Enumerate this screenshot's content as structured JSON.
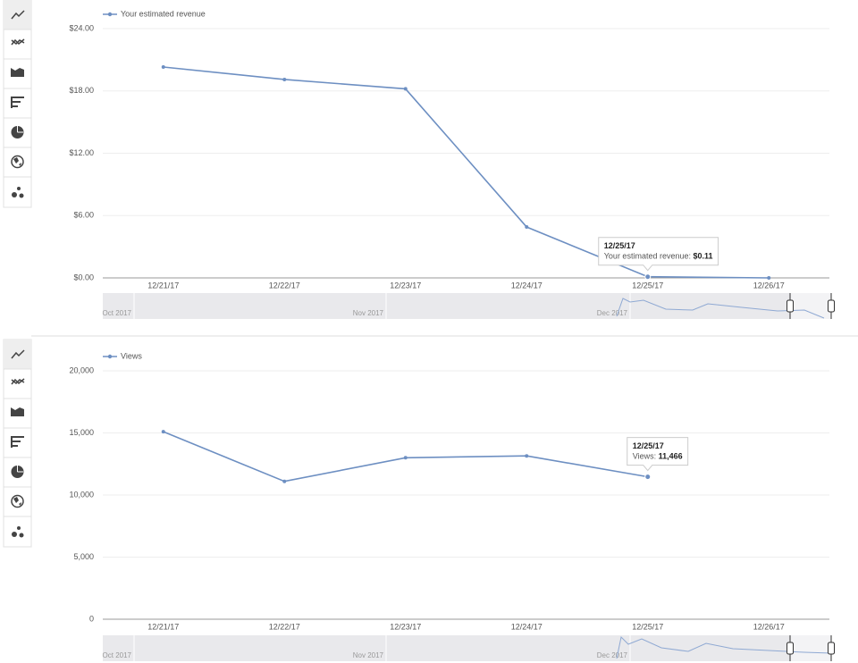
{
  "chart_data": [
    {
      "type": "line",
      "categories": [
        "12/21/17",
        "12/22/17",
        "12/23/17",
        "12/24/17",
        "12/25/17",
        "12/26/17"
      ],
      "series": [
        {
          "name": "Your estimated revenue",
          "color": "#6d8fc2",
          "values": [
            20.3,
            19.1,
            18.2,
            4.9,
            0.11,
            0.0
          ]
        }
      ],
      "ylim": [
        0,
        24
      ],
      "yticks": [
        {
          "value": 0,
          "label": "$0.00"
        },
        {
          "value": 6,
          "label": "$6.00"
        },
        {
          "value": 12,
          "label": "$12.00"
        },
        {
          "value": 18,
          "label": "$18.00"
        },
        {
          "value": 24,
          "label": "$24.00"
        }
      ],
      "grid": true,
      "tooltip": {
        "title": "12/25/17",
        "label": "Your estimated revenue:",
        "value": "$0.11"
      },
      "navigator_labels": [
        "Oct 2017",
        "Nov 2017",
        "Dec 2017"
      ]
    },
    {
      "type": "line",
      "categories": [
        "12/21/17",
        "12/22/17",
        "12/23/17",
        "12/24/17",
        "12/25/17",
        "12/26/17"
      ],
      "series": [
        {
          "name": "Views",
          "color": "#6d8fc2",
          "values": [
            15100,
            11100,
            13000,
            13150,
            11466,
            null
          ]
        }
      ],
      "ylim": [
        0,
        20000
      ],
      "yticks": [
        0,
        {
          "value": 5000,
          "label": "5,000"
        },
        {
          "value": 10000,
          "label": "10,000"
        },
        {
          "value": 15000,
          "label": "15,000"
        },
        {
          "value": 20000,
          "label": "20,000"
        }
      ],
      "grid": true,
      "tooltip": {
        "title": "12/25/17",
        "label": "Views:",
        "value": "11,466"
      },
      "navigator_labels": [
        "Oct 2017",
        "Nov 2017",
        "Dec 2017"
      ]
    }
  ]
}
